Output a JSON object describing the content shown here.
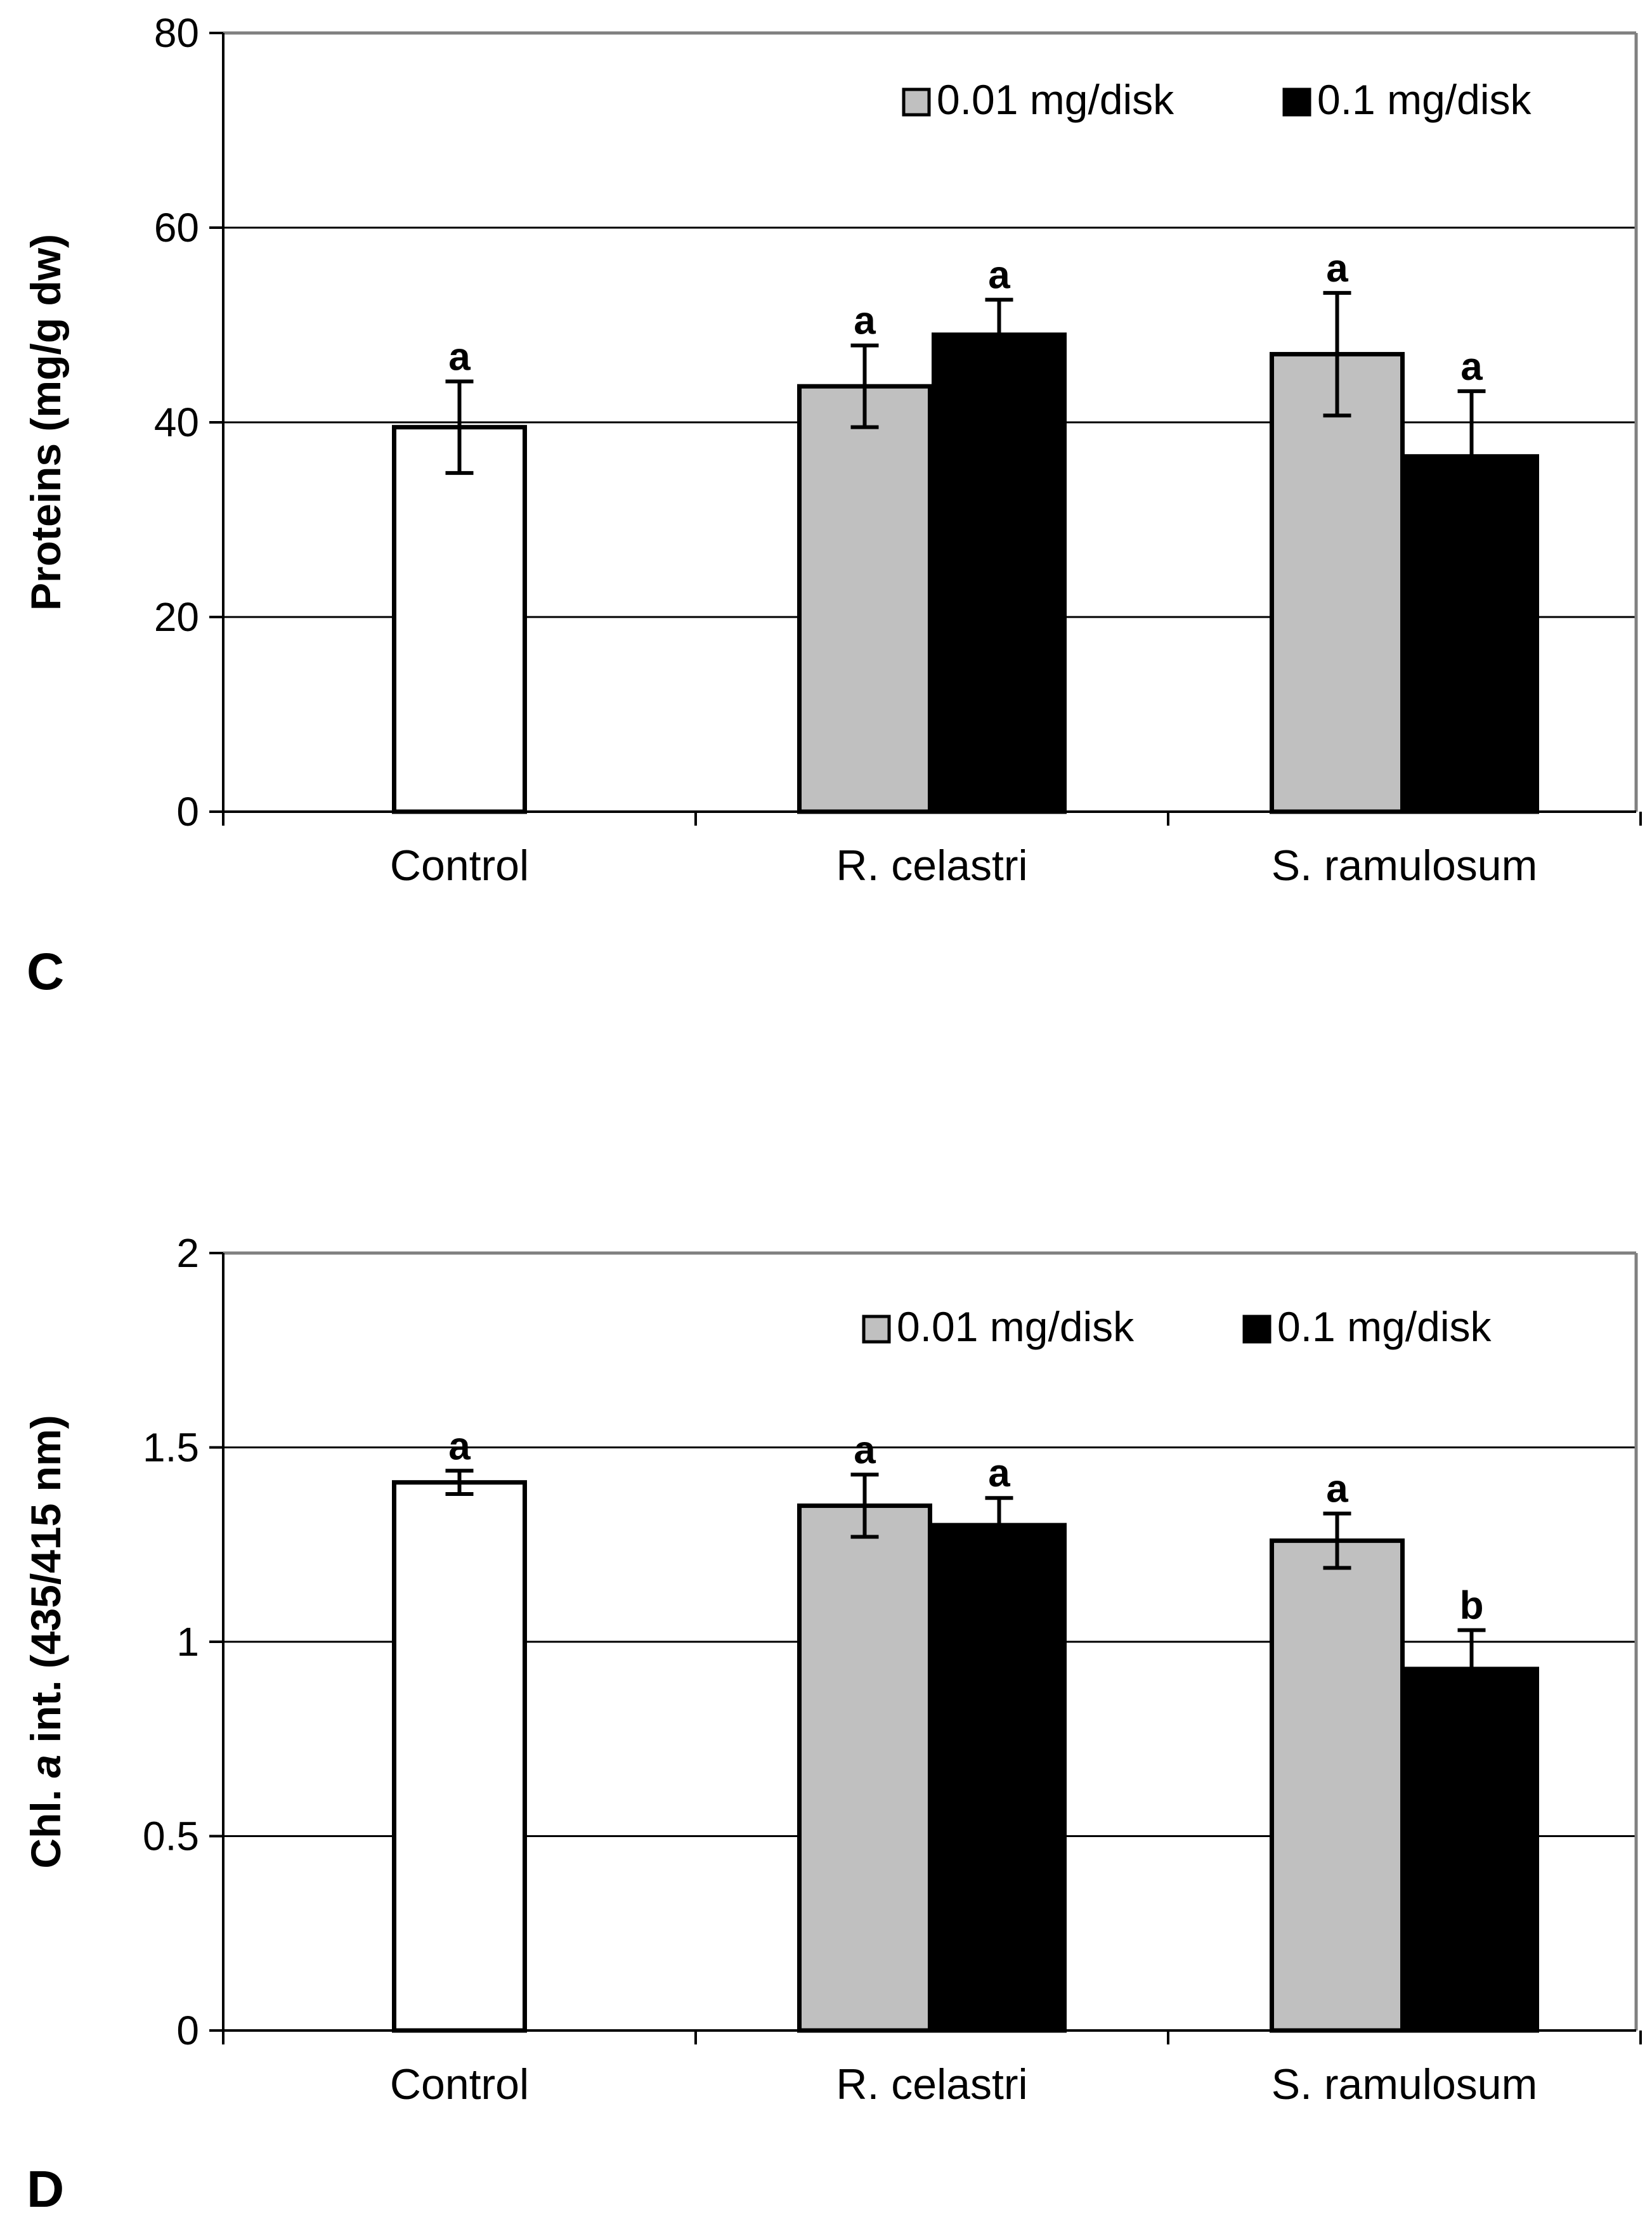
{
  "chart_data": [
    {
      "type": "bar",
      "panel": "C",
      "ylabel": "Proteins (mg/g dw)",
      "xlabel": "",
      "ylim": [
        0,
        80
      ],
      "yticks": [
        0,
        20,
        40,
        60,
        80
      ],
      "ytick_labels": [
        "0",
        "20",
        "40",
        "60",
        "80"
      ],
      "grid": true,
      "legend_position": "top-right",
      "categories": [
        "Control",
        "R. celastri",
        "S. ramulosum"
      ],
      "series": [
        {
          "name": "Control",
          "legend": false,
          "color": "#ffffff",
          "values": [
            39.5,
            null,
            null
          ],
          "errors": [
            4.7,
            null,
            null
          ],
          "labels": [
            "a",
            null,
            null
          ]
        },
        {
          "name": "0.01 mg/disk",
          "legend": true,
          "color": "#c0c0c0",
          "values": [
            null,
            43.7,
            47.0
          ],
          "errors": [
            null,
            4.2,
            6.3
          ],
          "labels": [
            null,
            "a",
            "a"
          ]
        },
        {
          "name": "0.1 mg/disk",
          "legend": true,
          "color": "#000000",
          "values": [
            null,
            49.0,
            36.5
          ],
          "errors": [
            null,
            3.6,
            6.7
          ],
          "labels": [
            null,
            "a",
            "a"
          ]
        }
      ]
    },
    {
      "type": "bar",
      "panel": "D",
      "ylabel_prefix": "Chl. ",
      "ylabel_italic": "a",
      "ylabel_suffix": " int. (435/415 nm)",
      "xlabel": "",
      "ylim": [
        0,
        2
      ],
      "yticks": [
        0,
        0.5,
        1,
        1.5,
        2
      ],
      "ytick_labels": [
        "0",
        "0.5",
        "1",
        "1.5",
        "2"
      ],
      "grid": true,
      "legend_position": "top-right",
      "categories": [
        "Control",
        "R. celastri",
        "S. ramulosum"
      ],
      "series": [
        {
          "name": "Control",
          "legend": false,
          "color": "#ffffff",
          "values": [
            1.41,
            null,
            null
          ],
          "errors": [
            0.03,
            null,
            null
          ],
          "labels": [
            "a",
            null,
            null
          ]
        },
        {
          "name": "0.01 mg/disk",
          "legend": true,
          "color": "#c0c0c0",
          "values": [
            null,
            1.35,
            1.26
          ],
          "errors": [
            null,
            0.08,
            0.07
          ],
          "labels": [
            null,
            "a",
            "a"
          ]
        },
        {
          "name": "0.1 mg/disk",
          "legend": true,
          "color": "#000000",
          "values": [
            null,
            1.3,
            0.93
          ],
          "errors": [
            null,
            0.07,
            0.1
          ],
          "labels": [
            null,
            "a",
            "b"
          ]
        }
      ]
    }
  ]
}
